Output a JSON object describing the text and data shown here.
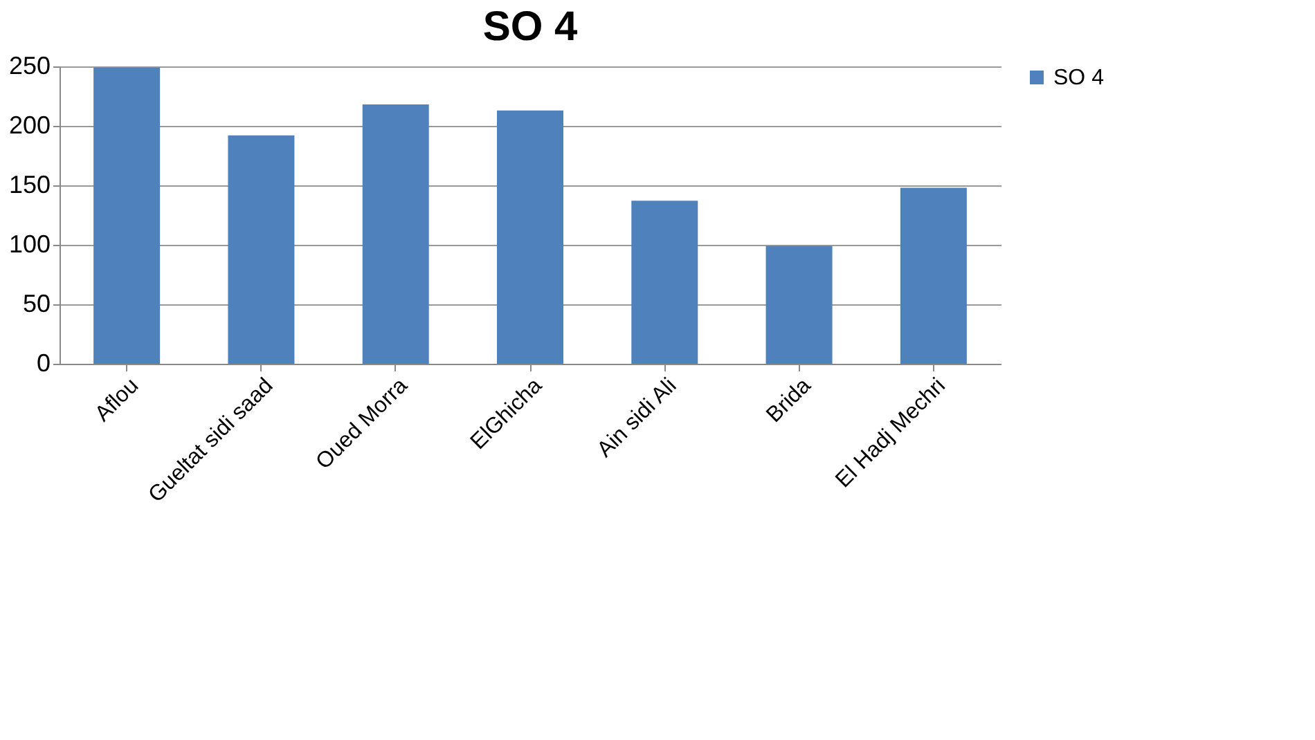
{
  "chart_data": {
    "type": "bar",
    "title": "SO 4",
    "categories": [
      "Aflou",
      "Gueltat sidi saad",
      "Oued Morra",
      "ElGhicha",
      "Ain sidi Ali",
      "Brida",
      "El Hadj Mechri"
    ],
    "series": [
      {
        "name": "SO 4",
        "color": "#4f81bd",
        "values": [
          249,
          192,
          218,
          213,
          137,
          99,
          148
        ]
      }
    ],
    "ylim": [
      0,
      250
    ],
    "yticks": [
      0,
      50,
      100,
      150,
      200,
      250
    ],
    "grid": "y",
    "legend": "right"
  }
}
